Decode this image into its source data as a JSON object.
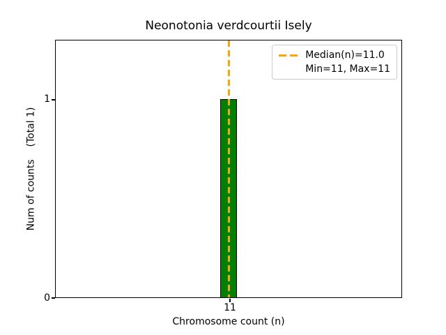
{
  "chart_data": {
    "type": "bar",
    "title": "Neonotonia verdcourtii Isely",
    "xlabel": "Chromosome count (n)",
    "ylabel": "Num of counts    (Total 1)",
    "categories": [
      "11"
    ],
    "values": [
      1
    ],
    "total_counts": 1,
    "xticks": [
      "11"
    ],
    "yticks": [
      "0",
      "1"
    ],
    "ylim": [
      0,
      1.3
    ],
    "grid": false,
    "legend": {
      "position": "upper right",
      "entries": [
        "Median(n)=11.0",
        "Min=11, Max=11"
      ]
    },
    "stats": {
      "median_n": "11.0",
      "min": "11",
      "max": "11"
    },
    "colors": {
      "bar_fill": "#008000",
      "bar_edge": "#000000",
      "median_line": "#ffa500",
      "legend_border": "#cccccc",
      "text": "#000000"
    }
  }
}
